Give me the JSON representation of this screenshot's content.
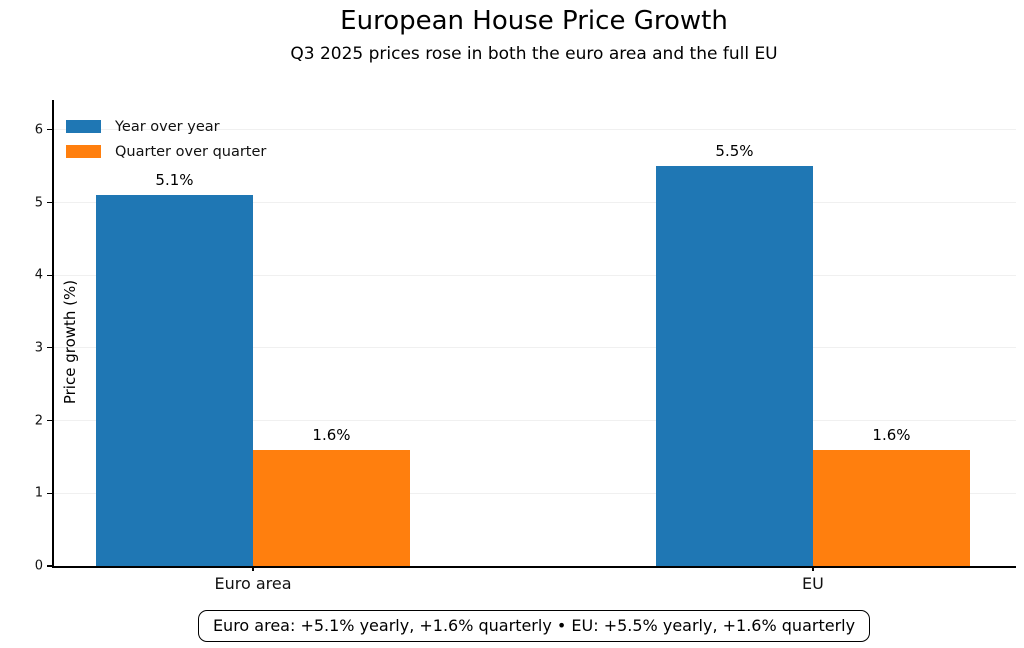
{
  "header": {
    "title": "European House Price Growth",
    "subtitle": "Q3 2025 prices rose in both the euro area and the full EU"
  },
  "caption": "Euro area: +5.1% yearly, +1.6% quarterly • EU: +5.5% yearly, +1.6% quarterly",
  "chart_data": {
    "type": "bar",
    "title": "European House Price Growth",
    "subtitle": "Q3 2025 prices rose in both the euro area and the full EU",
    "categories": [
      "Euro area",
      "EU"
    ],
    "series": [
      {
        "name": "Year over year",
        "color": "#1f77b4",
        "values": [
          5.1,
          5.5
        ],
        "value_labels": [
          "5.1%",
          "5.5%"
        ]
      },
      {
        "name": "Quarter over quarter",
        "color": "#ff7f0e",
        "values": [
          1.6,
          1.6
        ],
        "value_labels": [
          "1.6%",
          "1.6%"
        ]
      }
    ],
    "xlabel": "",
    "ylabel": "Price growth (%)",
    "ylim": [
      0,
      6.41
    ],
    "yticks": [
      0,
      1,
      2,
      3,
      4,
      5,
      6
    ],
    "grid": true,
    "legend_position": "upper left",
    "annotation": "Euro area: +5.1% yearly, +1.6% quarterly • EU: +5.5% yearly, +1.6% quarterly"
  }
}
